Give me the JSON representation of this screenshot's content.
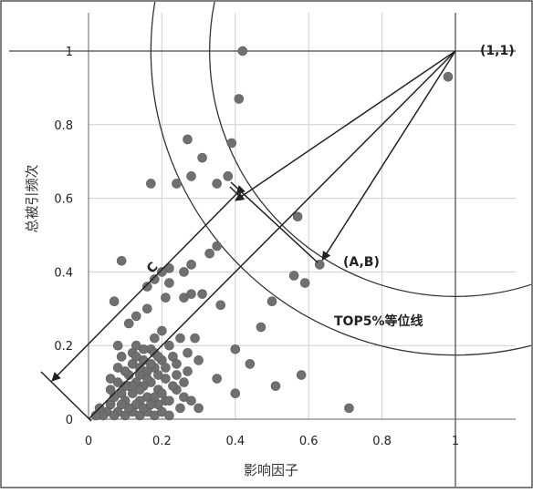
{
  "chart_data": {
    "type": "scatter",
    "title": "",
    "xlabel": "影响因子",
    "ylabel": "总被引频次",
    "xlim": [
      0,
      1
    ],
    "ylim": [
      0,
      1
    ],
    "x_ticks": [
      "0",
      "0.2",
      "0.4",
      "0.6",
      "0.8",
      "1"
    ],
    "y_ticks": [
      "0",
      "0.2",
      "0.4",
      "0.6",
      "0.8",
      "1"
    ],
    "grid": true,
    "series": [
      {
        "points": [
          [
            0.42,
            1.0
          ],
          [
            0.98,
            0.93
          ],
          [
            0.41,
            0.87
          ],
          [
            0.27,
            0.76
          ],
          [
            0.39,
            0.75
          ],
          [
            0.31,
            0.71
          ],
          [
            0.38,
            0.66
          ],
          [
            0.28,
            0.66
          ],
          [
            0.24,
            0.64
          ],
          [
            0.17,
            0.64
          ],
          [
            0.35,
            0.64
          ],
          [
            0.57,
            0.55
          ],
          [
            0.63,
            0.42
          ],
          [
            0.56,
            0.39
          ],
          [
            0.59,
            0.37
          ],
          [
            0.35,
            0.47
          ],
          [
            0.33,
            0.45
          ],
          [
            0.28,
            0.42
          ],
          [
            0.26,
            0.4
          ],
          [
            0.22,
            0.41
          ],
          [
            0.2,
            0.4
          ],
          [
            0.09,
            0.43
          ],
          [
            0.22,
            0.37
          ],
          [
            0.18,
            0.38
          ],
          [
            0.16,
            0.36
          ],
          [
            0.28,
            0.34
          ],
          [
            0.31,
            0.34
          ],
          [
            0.26,
            0.33
          ],
          [
            0.21,
            0.33
          ],
          [
            0.07,
            0.32
          ],
          [
            0.36,
            0.31
          ],
          [
            0.5,
            0.32
          ],
          [
            0.16,
            0.3
          ],
          [
            0.13,
            0.28
          ],
          [
            0.11,
            0.26
          ],
          [
            0.47,
            0.25
          ],
          [
            0.2,
            0.24
          ],
          [
            0.18,
            0.22
          ],
          [
            0.25,
            0.22
          ],
          [
            0.29,
            0.22
          ],
          [
            0.22,
            0.2
          ],
          [
            0.17,
            0.19
          ],
          [
            0.15,
            0.19
          ],
          [
            0.13,
            0.2
          ],
          [
            0.12,
            0.18
          ],
          [
            0.08,
            0.2
          ],
          [
            0.4,
            0.19
          ],
          [
            0.27,
            0.18
          ],
          [
            0.23,
            0.17
          ],
          [
            0.2,
            0.16
          ],
          [
            0.3,
            0.16
          ],
          [
            0.44,
            0.15
          ],
          [
            0.58,
            0.12
          ],
          [
            0.18,
            0.14
          ],
          [
            0.16,
            0.13
          ],
          [
            0.14,
            0.12
          ],
          [
            0.11,
            0.12
          ],
          [
            0.08,
            0.1
          ],
          [
            0.35,
            0.11
          ],
          [
            0.51,
            0.09
          ],
          [
            0.4,
            0.07
          ],
          [
            0.24,
            0.08
          ],
          [
            0.28,
            0.05
          ],
          [
            0.21,
            0.05
          ],
          [
            0.19,
            0.04
          ],
          [
            0.16,
            0.06
          ],
          [
            0.14,
            0.05
          ],
          [
            0.12,
            0.07
          ],
          [
            0.1,
            0.05
          ],
          [
            0.71,
            0.03
          ],
          [
            0.3,
            0.03
          ],
          [
            0.26,
            0.06
          ],
          [
            0.06,
            0.04
          ],
          [
            0.05,
            0.02
          ],
          [
            0.03,
            0.03
          ],
          [
            0.04,
            0.01
          ],
          [
            0.08,
            0.02
          ],
          [
            0.1,
            0.01
          ],
          [
            0.12,
            0.02
          ],
          [
            0.14,
            0.01
          ],
          [
            0.16,
            0.02
          ],
          [
            0.18,
            0.01
          ],
          [
            0.2,
            0.02
          ],
          [
            0.22,
            0.01
          ],
          [
            0.09,
            0.07
          ],
          [
            0.11,
            0.09
          ],
          [
            0.13,
            0.1
          ],
          [
            0.15,
            0.09
          ],
          [
            0.17,
            0.1
          ],
          [
            0.19,
            0.08
          ],
          [
            0.21,
            0.11
          ],
          [
            0.23,
            0.09
          ],
          [
            0.07,
            0.06
          ],
          [
            0.06,
            0.08
          ],
          [
            0.1,
            0.13
          ],
          [
            0.12,
            0.15
          ],
          [
            0.14,
            0.14
          ],
          [
            0.15,
            0.16
          ],
          [
            0.19,
            0.12
          ],
          [
            0.21,
            0.14
          ],
          [
            0.24,
            0.12
          ],
          [
            0.26,
            0.1
          ],
          [
            0.13,
            0.04
          ],
          [
            0.15,
            0.03
          ],
          [
            0.17,
            0.04
          ],
          [
            0.11,
            0.03
          ],
          [
            0.09,
            0.04
          ],
          [
            0.07,
            0.01
          ],
          [
            0.02,
            0.01
          ],
          [
            0.18,
            0.06
          ],
          [
            0.2,
            0.07
          ],
          [
            0.22,
            0.05
          ],
          [
            0.25,
            0.03
          ],
          [
            0.24,
            0.15
          ],
          [
            0.09,
            0.17
          ],
          [
            0.12,
            0.09
          ],
          [
            0.16,
            0.11
          ],
          [
            0.06,
            0.11
          ],
          [
            0.13,
            0.17
          ],
          [
            0.18,
            0.18
          ],
          [
            0.14,
            0.08
          ],
          [
            0.1,
            0.09
          ],
          [
            0.08,
            0.14
          ],
          [
            0.17,
            0.15
          ],
          [
            0.19,
            0.17
          ],
          [
            0.27,
            0.13
          ]
        ]
      }
    ],
    "annotations": {
      "corner_label": "(1,1)",
      "point_label": "(A,B)",
      "distance_label": "C",
      "contour_label": "TOP5%等位线"
    },
    "reference_point": [
      1,
      1
    ],
    "labeled_point": [
      0.63,
      0.42
    ],
    "contour_radii": [
      0.67,
      0.83
    ]
  }
}
